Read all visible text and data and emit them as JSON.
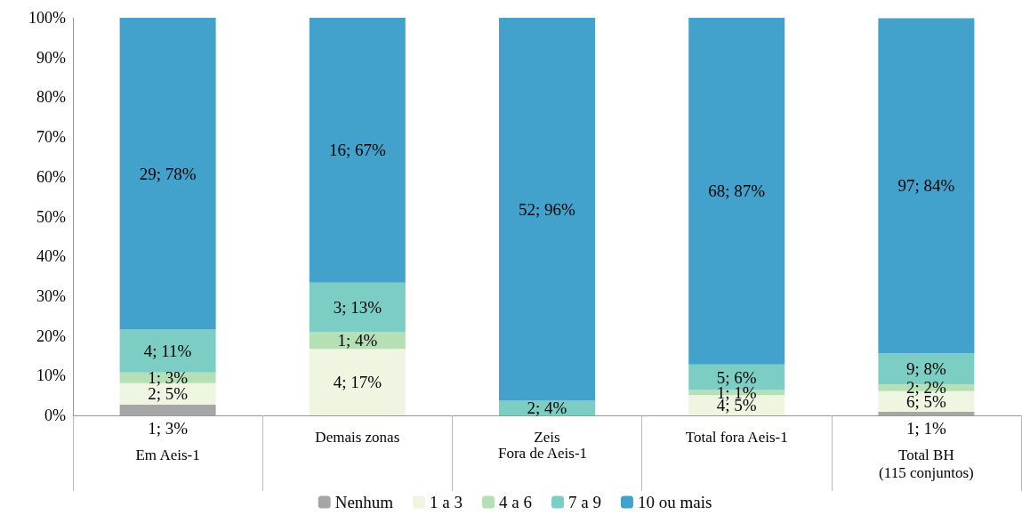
{
  "chart_data": {
    "type": "bar",
    "stacked": true,
    "categories": [
      "Em Aeis-1",
      "Demais zonas",
      "Zeis",
      "Total fora Aeis-1",
      "Total BH\n(115 conjuntos)"
    ],
    "series": [
      {
        "name": "Nenhum",
        "color": "#a6a6a6",
        "values": [
          2.7,
          null,
          null,
          null,
          0.9
        ],
        "value_labels": [
          "1; 3%",
          null,
          null,
          null,
          "1; 1%"
        ]
      },
      {
        "name": "1 a 3",
        "color": "#eef6e2",
        "values": [
          5.4,
          16.7,
          null,
          5.1,
          5.2
        ],
        "value_labels": [
          "2; 5%",
          "4; 17%",
          null,
          "4; 5%",
          "6; 5%"
        ]
      },
      {
        "name": "4 a 6",
        "color": "#b5e0b5",
        "values": [
          2.7,
          4.2,
          null,
          1.3,
          1.7
        ],
        "value_labels": [
          "1; 3%",
          "1; 4%",
          null,
          "1; 1%",
          "2; 2%"
        ]
      },
      {
        "name": "7 a 9",
        "color": "#7ccdc4",
        "values": [
          10.8,
          12.5,
          3.7,
          6.4,
          7.8
        ],
        "value_labels": [
          "4; 11%",
          "3; 13%",
          "2; 4%",
          "5; 6%",
          "9; 8%"
        ]
      },
      {
        "name": "10 ou mais",
        "color": "#43a2cb",
        "values": [
          78.4,
          66.7,
          96.3,
          87.2,
          84.3
        ],
        "value_labels": [
          "29; 78%",
          "16; 67%",
          "52; 96%",
          "68; 87%",
          "97; 84%"
        ]
      }
    ],
    "ylim": [
      0,
      100
    ],
    "yticks": [
      {
        "value": 0,
        "label": "0%"
      },
      {
        "value": 10,
        "label": "10%"
      },
      {
        "value": 20,
        "label": "20%"
      },
      {
        "value": 30,
        "label": "30%"
      },
      {
        "value": 40,
        "label": "40%"
      },
      {
        "value": 50,
        "label": "50%"
      },
      {
        "value": 60,
        "label": "60%"
      },
      {
        "value": 70,
        "label": "70%"
      },
      {
        "value": 80,
        "label": "80%"
      },
      {
        "value": 90,
        "label": "90%"
      },
      {
        "value": 100,
        "label": "100%"
      }
    ],
    "annotations": [
      "Fora de Aeis-1"
    ],
    "grid": false,
    "legend": "bottom"
  }
}
